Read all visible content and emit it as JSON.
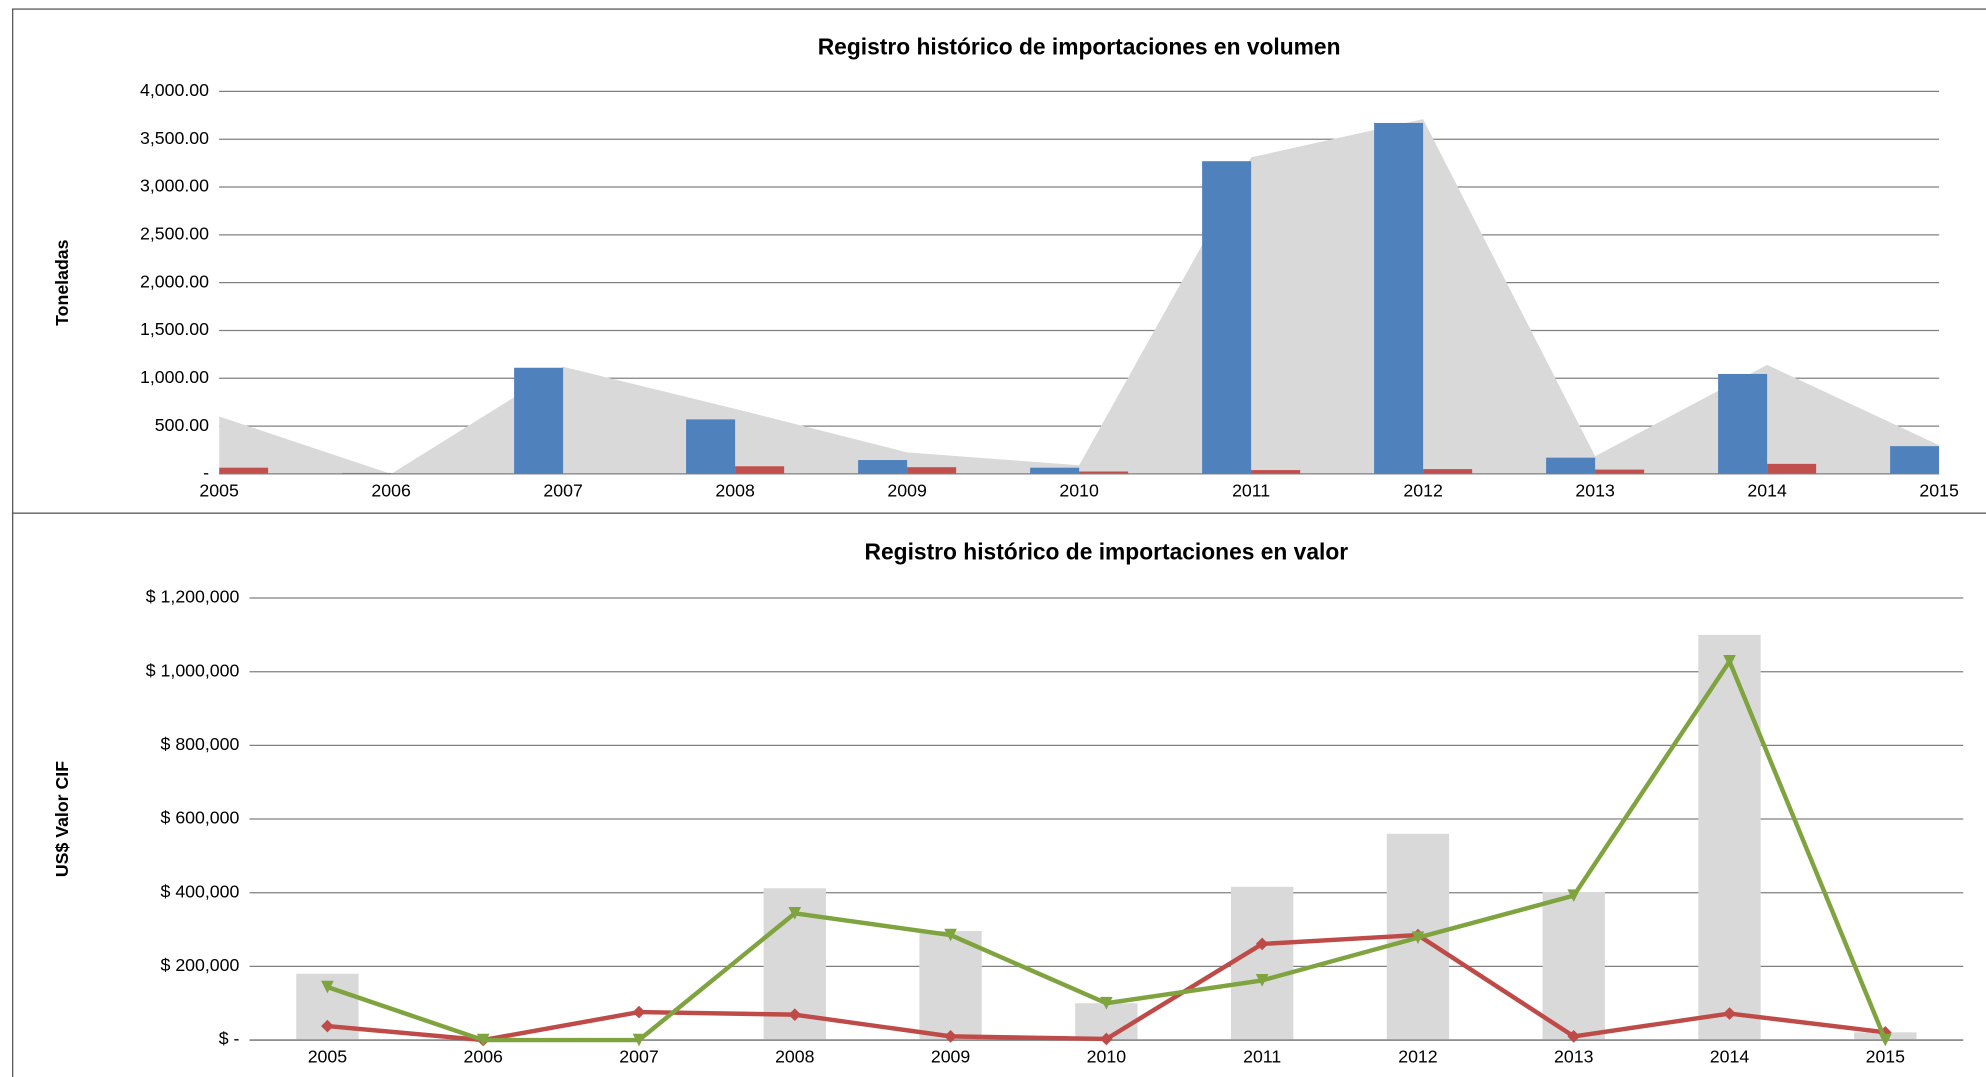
{
  "chart_data": [
    {
      "type": "combo",
      "title": "Registro histórico de importaciones en volumen",
      "y_label": "Toneladas",
      "categories": [
        "2005",
        "2006",
        "2007",
        "2008",
        "2009",
        "2010",
        "2011",
        "2012",
        "2013",
        "2014",
        "2015"
      ],
      "series": [
        {
          "type": "area",
          "color": "#d9d9d9",
          "values": [
            600,
            0,
            1120,
            680,
            225,
            90,
            3310,
            3710,
            185,
            1140,
            300
          ]
        },
        {
          "type": "bar",
          "color": "#4f81bd",
          "values": [
            null,
            10,
            1110,
            570,
            145,
            65,
            3270,
            3670,
            170,
            1045,
            290
          ]
        },
        {
          "type": "bar",
          "color": "#c0504d",
          "values": [
            65,
            0,
            0,
            80,
            70,
            25,
            40,
            50,
            45,
            105,
            null
          ]
        }
      ],
      "ylim": [
        0,
        4000
      ],
      "yticks": [
        {
          "value": 0,
          "label": "-"
        },
        {
          "value": 500,
          "label": "500.00"
        },
        {
          "value": 1000,
          "label": "1,000.00"
        },
        {
          "value": 1500,
          "label": "1,500.00"
        },
        {
          "value": 2000,
          "label": "2,000.00"
        },
        {
          "value": 2500,
          "label": "2,500.00"
        },
        {
          "value": 3000,
          "label": "3,000.00"
        },
        {
          "value": 3500,
          "label": "3,500.00"
        },
        {
          "value": 4000,
          "label": "4,000.00"
        }
      ],
      "grid": true
    },
    {
      "type": "combo",
      "title": "Registro histórico de importaciones en valor",
      "y_label": "US$ Valor CIF",
      "categories": [
        "2005",
        "2006",
        "2007",
        "2008",
        "2009",
        "2010",
        "2011",
        "2012",
        "2013",
        "2014",
        "2015"
      ],
      "series": [
        {
          "type": "bar",
          "color": "#d9d9d9",
          "values": [
            180000,
            0,
            0,
            412000,
            296000,
            100000,
            416000,
            560000,
            402000,
            1100000,
            21000
          ]
        },
        {
          "type": "line",
          "color": "#be4b48",
          "marker": "diamond",
          "values": [
            38000,
            0,
            76000,
            69000,
            10000,
            3000,
            261000,
            285000,
            10000,
            72000,
            21000
          ]
        },
        {
          "type": "line",
          "color": "#7fa33e",
          "marker": "triangle-down",
          "values": [
            144000,
            0,
            0,
            344000,
            285000,
            100000,
            162000,
            278000,
            392000,
            1028000,
            0
          ]
        }
      ],
      "ylim": [
        0,
        1200000
      ],
      "yticks": [
        {
          "value": 0,
          "label": "$ -"
        },
        {
          "value": 200000,
          "label": "$ 200,000"
        },
        {
          "value": 400000,
          "label": "$ 400,000"
        },
        {
          "value": 600000,
          "label": "$ 600,000"
        },
        {
          "value": 800000,
          "label": "$ 800,000"
        },
        {
          "value": 1000000,
          "label": "$ 1,000,000"
        },
        {
          "value": 1200000,
          "label": "$ 1,200,000"
        }
      ],
      "grid": true
    }
  ]
}
